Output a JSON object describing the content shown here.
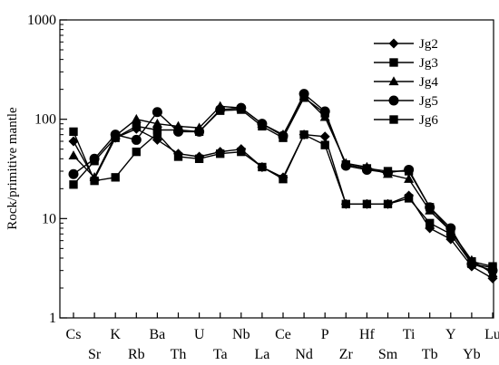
{
  "chart_data": {
    "type": "line",
    "title": "",
    "xlabel": "",
    "ylabel": "Rock/primitive mantle",
    "y_scale": "log",
    "ylim": [
      1,
      1000
    ],
    "y_ticks": [
      "1",
      "10",
      "100",
      "1000"
    ],
    "grid": false,
    "legend_position": "top-right",
    "categories": [
      "Cs",
      "Sr",
      "K",
      "Rb",
      "Ba",
      "Th",
      "U",
      "Ta",
      "Nb",
      "La",
      "Ce",
      "Nd",
      "P",
      "Zr",
      "Hf",
      "Sm",
      "Ti",
      "Tb",
      "Y",
      "Yb",
      "Lu"
    ],
    "series": [
      {
        "name": "Jg2",
        "marker": "diamond",
        "values": [
          60,
          25,
          65,
          80,
          62,
          45,
          42,
          47,
          50,
          33,
          26,
          70,
          67,
          14,
          14,
          14,
          17,
          8,
          6.2,
          3.3,
          2.5
        ]
      },
      {
        "name": "Jg3",
        "marker": "square",
        "values": [
          75,
          24,
          26,
          47,
          72,
          42,
          40,
          45,
          47,
          33,
          25,
          70,
          55,
          14,
          14,
          14,
          16,
          9,
          7,
          3.5,
          3.2
        ]
      },
      {
        "name": "Jg4",
        "marker": "triangle",
        "values": [
          43,
          26,
          68,
          100,
          90,
          85,
          82,
          135,
          130,
          90,
          70,
          170,
          105,
          36,
          33,
          28,
          25,
          12,
          7.5,
          3.8,
          2.8
        ]
      },
      {
        "name": "Jg5",
        "marker": "circle",
        "values": [
          28,
          40,
          70,
          62,
          118,
          75,
          75,
          125,
          130,
          90,
          68,
          180,
          120,
          34,
          31,
          29,
          31,
          13,
          8,
          3.5,
          3.0
        ]
      },
      {
        "name": "Jg6",
        "marker": "square",
        "values": [
          22,
          38,
          65,
          85,
          78,
          78,
          75,
          122,
          125,
          85,
          65,
          165,
          115,
          35,
          32,
          30,
          30,
          13,
          7.5,
          3.7,
          3.3
        ]
      }
    ]
  }
}
